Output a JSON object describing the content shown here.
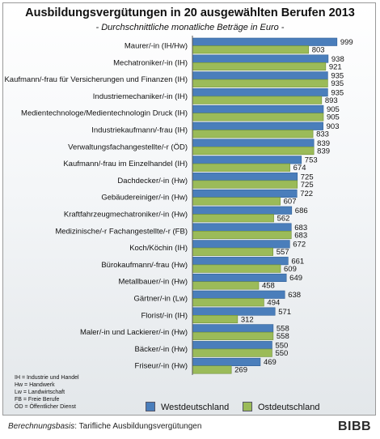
{
  "title": "Ausbildungsvergütungen in 20 ausgewählten Berufen 2013",
  "subtitle": "- Durchschnittliche monatliche Beträge in Euro -",
  "legend": {
    "west_label": "Westdeutschland",
    "east_label": "Ostdeutschland"
  },
  "colors": {
    "west": "#4a7ebb",
    "east": "#9bbb59"
  },
  "abbreviations": [
    "IH = Industrie und Handel",
    "Hw = Handwerk",
    "Lw = Landwirtschaft",
    "FB = Freie Berufe",
    "ÖD = Öffentlicher Dienst"
  ],
  "source": {
    "label": "Berechnungsbasis",
    "text": ": Tarifliche Ausbildungsvergütungen"
  },
  "logo": "BIBB",
  "chart_data": {
    "type": "bar",
    "orientation": "horizontal",
    "categories": [
      "Maurer/-in (IH/Hw)",
      "Mechatroniker/-in (IH)",
      "Kaufmann/-frau für Versicherungen und Finanzen (IH)",
      "Industriemechaniker/-in (IH)",
      "Medientechnologe/Medientechnologin Druck (IH)",
      "Industriekaufmann/-frau (IH)",
      "Verwaltungsfachangestellte/-r (ÖD)",
      "Kaufmann/-frau im Einzelhandel (IH)",
      "Dachdecker/-in (Hw)",
      "Gebäudereiniger/-in (Hw)",
      "Kraftfahrzeugmechatroniker/-in (Hw)",
      "Medizinische/-r Fachangestellte/-r (FB)",
      "Koch/Köchin (IH)",
      "Bürokaufmann/-frau (Hw)",
      "Metallbauer/-in (Hw)",
      "Gärtner/-in (Lw)",
      "Florist/-in (IH)",
      "Maler/-in und Lackierer/-in (Hw)",
      "Bäcker/-in (Hw)",
      "Friseur/-in (Hw)"
    ],
    "series": [
      {
        "name": "Westdeutschland",
        "values": [
          999,
          938,
          935,
          935,
          905,
          903,
          839,
          753,
          725,
          722,
          686,
          683,
          672,
          661,
          649,
          638,
          571,
          558,
          550,
          469
        ]
      },
      {
        "name": "Ostdeutschland",
        "values": [
          803,
          921,
          935,
          893,
          905,
          833,
          839,
          674,
          725,
          607,
          562,
          683,
          557,
          609,
          458,
          494,
          312,
          558,
          550,
          269
        ]
      }
    ],
    "xlim": [
      0,
      1000
    ],
    "grid": false,
    "legend_position": "bottom"
  }
}
